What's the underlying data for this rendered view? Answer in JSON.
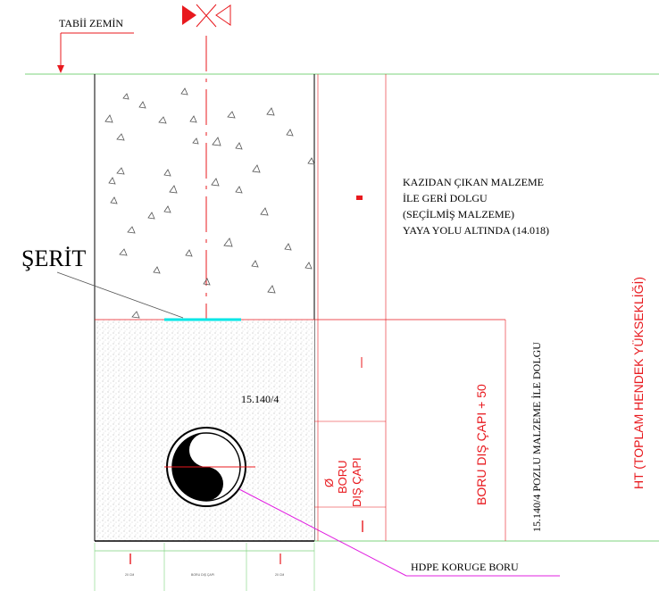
{
  "ground_label": "TABİİ ZEMİN",
  "tape_label": "ŞERİT",
  "backfill_note": [
    "KAZIDAN ÇIKAN MALZEME",
    "İLE GERİ DOLGU",
    "(SEÇİLMİŞ MALZEME)",
    "YAYA YOLU  ALTINDA (14.018)"
  ],
  "bedding_code": "15.140/4",
  "pipe_label": "HDPE KORUGE BORU",
  "dim_pipe_diameter": [
    "Ø",
    "BORU",
    "DIŞ ÇAPI"
  ],
  "dim_pipe_plus": "BORU DIŞ ÇAPI  + 50",
  "bedding_note": "15.140/4 POZLU MALZEME İLE DOLGU",
  "dim_total": "HT (TOPLAM HENDEK YÜKSEKLİĞİ)",
  "bottom_dim_mid": "BORU DIŞ ÇAPI",
  "bottom_dim_side": "20 CM",
  "colors": {
    "accent_red": "#e8191e",
    "ground_green": "#7ed37e",
    "tape_cyan": "#00e6e6",
    "pipe_leader_magenta": "#e020e0"
  }
}
